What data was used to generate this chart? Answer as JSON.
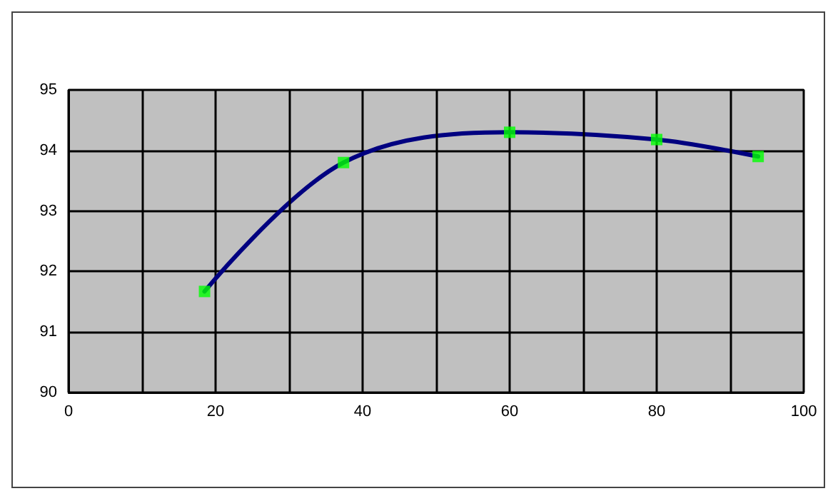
{
  "chart_data": {
    "type": "line",
    "x": [
      18.5,
      37.4,
      60,
      80,
      93.8
    ],
    "series": [
      {
        "color": "#000080",
        "values": [
          91.67,
          93.8,
          94.3,
          94.18,
          93.9
        ],
        "marker": "none"
      },
      {
        "type": "scatter",
        "color": "#00ff00",
        "values": [
          91.67,
          93.8,
          94.3,
          94.18,
          93.9
        ],
        "marker": "square"
      }
    ],
    "xlim": [
      0,
      100
    ],
    "xticks": [
      0,
      20,
      40,
      60,
      80,
      100
    ],
    "ylim": [
      90,
      95
    ],
    "yticks": [
      90,
      91,
      92,
      93,
      94,
      95
    ],
    "grid": true
  }
}
